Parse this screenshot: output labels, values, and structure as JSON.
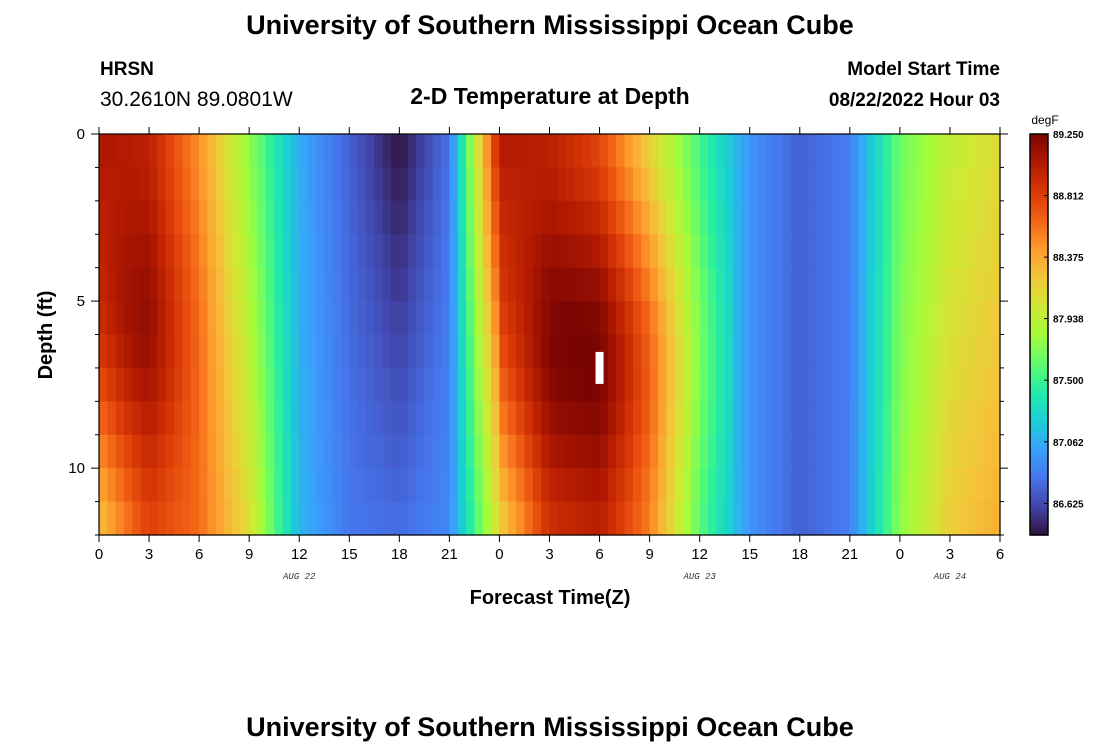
{
  "header": {
    "title": "University of Southern Mississippi Ocean Cube",
    "station": "HRSN",
    "coords": "30.2610N  89.0801W",
    "subtitle": "2-D Temperature at Depth",
    "model_label": "Model Start Time",
    "model_time": "08/22/2022 Hour 03",
    "footer_title": "University of Southern Mississippi Ocean Cube"
  },
  "chart_data": {
    "type": "heatmap",
    "title": "2-D Temperature at Depth",
    "xlabel": "Forecast Time(Z)",
    "ylabel": "Depth (ft)",
    "colorbar_unit": "degF",
    "x_range_hours": [
      0,
      54
    ],
    "x_ticks": [
      {
        "h": 0,
        "label": "0"
      },
      {
        "h": 3,
        "label": "3"
      },
      {
        "h": 6,
        "label": "6"
      },
      {
        "h": 9,
        "label": "9"
      },
      {
        "h": 12,
        "label": "12"
      },
      {
        "h": 15,
        "label": "15"
      },
      {
        "h": 18,
        "label": "18"
      },
      {
        "h": 21,
        "label": "21"
      },
      {
        "h": 24,
        "label": "0"
      },
      {
        "h": 27,
        "label": "3"
      },
      {
        "h": 30,
        "label": "6"
      },
      {
        "h": 33,
        "label": "9"
      },
      {
        "h": 36,
        "label": "12"
      },
      {
        "h": 39,
        "label": "15"
      },
      {
        "h": 42,
        "label": "18"
      },
      {
        "h": 45,
        "label": "21"
      },
      {
        "h": 48,
        "label": "0"
      },
      {
        "h": 51,
        "label": "3"
      },
      {
        "h": 54,
        "label": "6"
      }
    ],
    "day_labels": [
      {
        "h": 12,
        "label": "AUG 22"
      },
      {
        "h": 36,
        "label": "AUG 23"
      },
      {
        "h": 51,
        "label": "AUG 24"
      }
    ],
    "y_range": [
      0,
      12
    ],
    "y_ticks": [
      0,
      5,
      10
    ],
    "colorbar_range": [
      86.4,
      89.25
    ],
    "colorbar_ticks": [
      "89.250",
      "88.812",
      "88.375",
      "87.938",
      "87.500",
      "87.062",
      "86.625"
    ],
    "colormap": [
      "#30123b",
      "#4145ab",
      "#4675ed",
      "#39a2fc",
      "#1bcfd4",
      "#24eca6",
      "#61fc6c",
      "#a4fc3b",
      "#d1e834",
      "#f3c63a",
      "#fe9b2d",
      "#f36315",
      "#d93806",
      "#b11901",
      "#7a0402"
    ],
    "time_axis_hours": [
      0,
      3,
      6,
      9,
      12,
      15,
      18,
      21,
      24,
      27,
      30,
      33,
      36,
      39,
      42,
      45,
      48,
      51,
      54
    ],
    "surface_temp_degF": [
      89.05,
      88.95,
      88.45,
      87.75,
      87.05,
      86.72,
      86.4,
      86.8,
      89.05,
      88.95,
      88.7,
      88.1,
      87.5,
      86.95,
      86.72,
      86.85,
      87.65,
      87.95,
      88.1
    ],
    "bottom_temp_degF": [
      88.2,
      88.75,
      88.6,
      88.1,
      87.1,
      86.82,
      86.78,
      86.9,
      88.1,
      88.8,
      88.9,
      88.45,
      87.55,
      86.95,
      86.72,
      86.85,
      87.75,
      88.2,
      88.35
    ],
    "warm_core": {
      "hours": 30,
      "depth_ft": 6.5,
      "temp_degF": 89.25
    },
    "early_core": {
      "hours": 2,
      "depth_ft": 6,
      "temp_degF": 89.1
    },
    "model_start_marker": {
      "hours": 30,
      "depth_ft": 7
    }
  }
}
